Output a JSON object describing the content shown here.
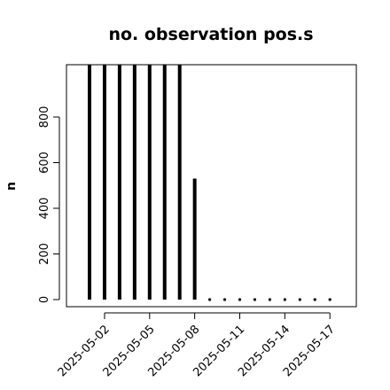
{
  "chart_data": {
    "type": "bar",
    "title": "no. observation pos.s",
    "ylabel": "n",
    "xlabel": "",
    "ylim": [
      0,
      1030
    ],
    "yticks": [
      0,
      200,
      400,
      600,
      800
    ],
    "xticks": [
      {
        "label": "2025-05-02",
        "color": "#000000"
      },
      {
        "label": "2025-05-05",
        "color": "#000000"
      },
      {
        "label": "2025-05-08",
        "color": "#228B22"
      },
      {
        "label": "2025-05-11",
        "color": "#000000"
      },
      {
        "label": "2025-05-14",
        "color": "#000000"
      },
      {
        "label": "2025-05-17",
        "color": "#000000"
      }
    ],
    "x": [
      "2025-05-01",
      "2025-05-02",
      "2025-05-03",
      "2025-05-04",
      "2025-05-05",
      "2025-05-06",
      "2025-05-07",
      "2025-05-08",
      "2025-05-09",
      "2025-05-10",
      "2025-05-11",
      "2025-05-12",
      "2025-05-13",
      "2025-05-14",
      "2025-05-15",
      "2025-05-16",
      "2025-05-17"
    ],
    "values": [
      1030,
      1030,
      1030,
      1030,
      1030,
      1030,
      1030,
      530,
      0,
      0,
      0,
      0,
      0,
      0,
      0,
      0,
      0
    ],
    "bar_color": "#000000",
    "grid": false
  }
}
